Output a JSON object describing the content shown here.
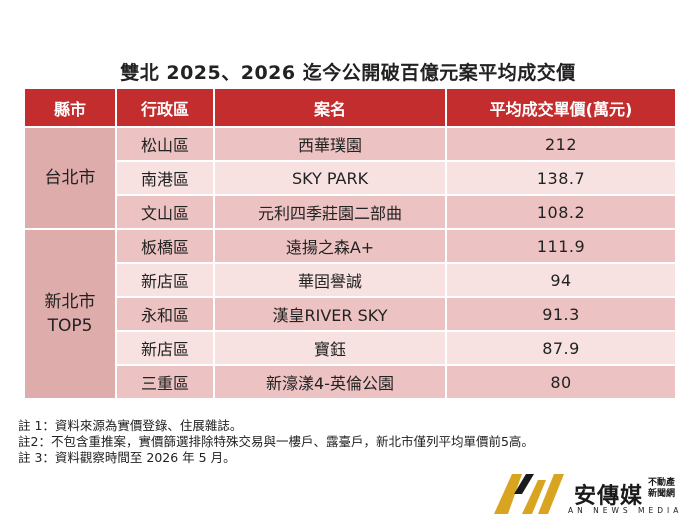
{
  "title": "雙北 2025、2026 迄今公開破百億元案平均成交價",
  "headers": [
    "縣市",
    "行政區",
    "案名",
    "平均成交單價(萬元)"
  ],
  "groups": [
    {
      "city": "台北市",
      "rows": [
        {
          "district": "松山區",
          "project": "西華璞園",
          "price": "212"
        },
        {
          "district": "南港區",
          "project": "SKY PARK",
          "price": "138.7"
        },
        {
          "district": "文山區",
          "project": "元利四季莊園二部曲",
          "price": "108.2"
        }
      ]
    },
    {
      "city": "新北市\nTOP5",
      "rows": [
        {
          "district": "板橋區",
          "project": "遠揚之森A+",
          "price": "111.9"
        },
        {
          "district": "新店區",
          "project": "華固譽誠",
          "price": "94"
        },
        {
          "district": "永和區",
          "project": "漢皇RIVER SKY",
          "price": "91.3"
        },
        {
          "district": "新店區",
          "project": "寶鈺",
          "price": "87.9"
        },
        {
          "district": "三重區",
          "project": "新濠漾4-英倫公園",
          "price": "80"
        }
      ]
    }
  ],
  "notes": [
    "註 1：資料來源為實價登錄、住展雜誌。",
    "註2：不包含重推案，實價篩選排除特殊交易與一樓戶、露臺戶，新北市僅列平均單價前5高。",
    "註 3：資料觀察時間至 2026 年 5 月。"
  ],
  "logo": {
    "name": "安傳媒",
    "small": "不動產\n新聞網",
    "sub": "AN NEWS MEDIA",
    "gold": "#d9a521",
    "dark": "#1a1a1a"
  }
}
